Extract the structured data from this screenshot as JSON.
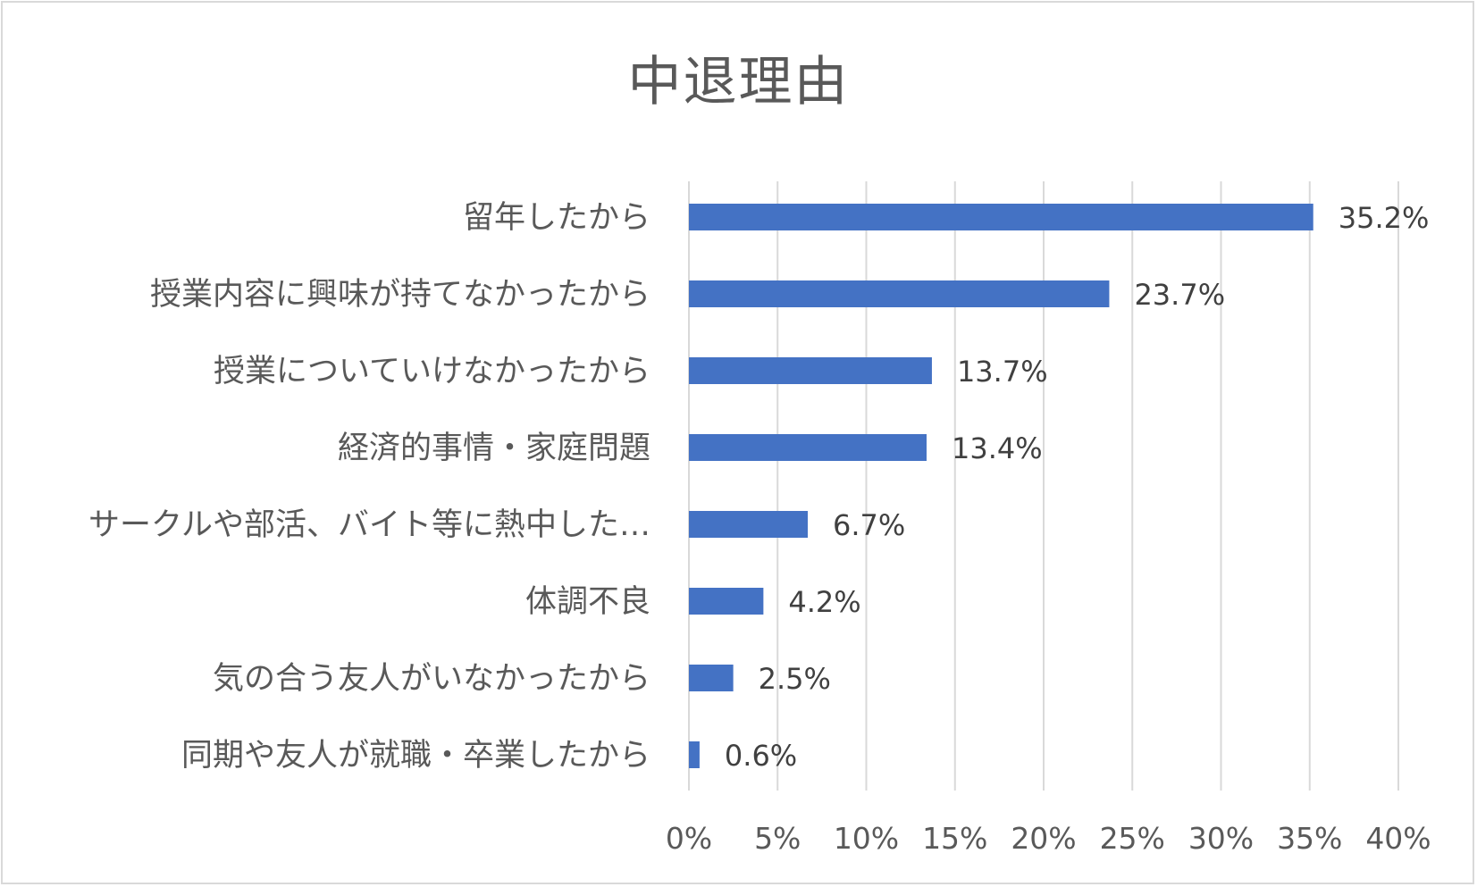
{
  "chart_data": {
    "type": "bar",
    "orientation": "horizontal",
    "title": "中退理由",
    "categories": [
      "留年したから",
      "授業内容に興味が持てなかったから",
      "授業についていけなかったから",
      "経済的事情・家庭問題",
      "サークルや部活、バイト等に熱中した…",
      "体調不良",
      "気の合う友人がいなかったから",
      "同期や友人が就職・卒業したから"
    ],
    "values": [
      35.2,
      23.7,
      13.7,
      13.4,
      6.7,
      4.2,
      2.5,
      0.6
    ],
    "value_labels": [
      "35.2%",
      "23.7%",
      "13.7%",
      "13.4%",
      "6.7%",
      "4.2%",
      "2.5%",
      "0.6%"
    ],
    "xlim": [
      0,
      40
    ],
    "x_ticks": [
      0,
      5,
      10,
      15,
      20,
      25,
      30,
      35,
      40
    ],
    "x_tick_labels": [
      "0%",
      "5%",
      "10%",
      "15%",
      "20%",
      "25%",
      "30%",
      "35%",
      "40%"
    ],
    "xlabel": "",
    "ylabel": "",
    "grid": true,
    "legend": "none",
    "bar_color": "#4472c4",
    "gridline_color": "#d9d9d9",
    "text_color": "#595959"
  }
}
